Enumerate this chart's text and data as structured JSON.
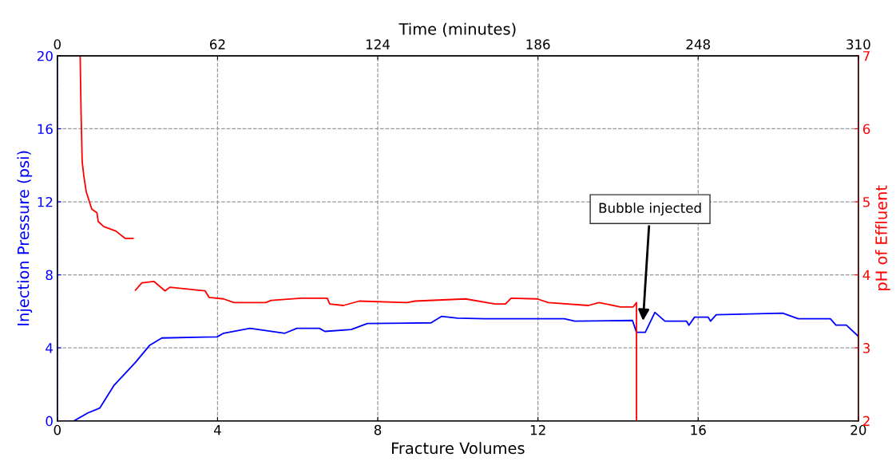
{
  "chart_data": {
    "type": "line",
    "xlabel": "Fracture Volumes",
    "ylabel": "Injection Pressure (psi)",
    "y2label": "pH of Effluent",
    "x2label": "Time (minutes)",
    "xlim": [
      0,
      20
    ],
    "xticks": [
      0,
      4,
      8,
      12,
      16,
      20
    ],
    "ylim": [
      0,
      20
    ],
    "yticks": [
      0,
      4,
      8,
      12,
      16,
      20
    ],
    "y2lim": [
      2,
      7
    ],
    "y2ticks": [
      2,
      3,
      4,
      5,
      6,
      7
    ],
    "x2lim": [
      0,
      310
    ],
    "x2ticks": [
      0,
      62,
      124,
      186,
      248,
      310
    ],
    "grid": true,
    "line_style": "solid",
    "marker": "none",
    "series": [
      {
        "color": "#0000ff",
        "x": [
          0.42,
          0.76,
          1.06,
          1.42,
          1.95,
          2.31,
          2.61,
          3.99,
          4.15,
          4.81,
          5.68,
          5.98,
          6.54,
          6.68,
          7.34,
          7.74,
          9.33,
          9.59,
          9.99,
          10.67,
          12.66,
          12.92,
          14.36,
          14.46,
          14.68,
          14.92,
          15.17,
          15.71,
          15.77,
          15.91,
          16.25,
          16.31,
          16.45,
          18.11,
          18.5,
          19.3,
          19.44,
          19.7,
          20
        ],
        "values": [
          0,
          0.43,
          0.7,
          1.96,
          3.2,
          4.15,
          4.54,
          4.6,
          4.8,
          5.07,
          4.8,
          5.07,
          5.07,
          4.9,
          5.0,
          5.33,
          5.37,
          5.72,
          5.63,
          5.59,
          5.59,
          5.46,
          5.5,
          4.85,
          4.85,
          5.94,
          5.46,
          5.46,
          5.24,
          5.68,
          5.68,
          5.46,
          5.81,
          5.9,
          5.59,
          5.59,
          5.24,
          5.24,
          4.63
        ]
      },
      {
        "color": "#ff0000",
        "axis": "y2",
        "x": [
          0.57,
          0.59,
          0.62,
          0.66,
          0.72,
          0.86,
          0.99,
          1.02,
          1.16,
          1.46,
          1.69,
          1.89,
          1.92,
          1.95,
          2.11,
          2.41,
          2.69,
          2.81,
          3.69,
          3.79,
          4.15,
          4.41,
          5.2,
          5.34,
          6.08,
          6.74,
          6.8,
          7.14,
          7.54,
          8.73,
          8.93,
          10.19,
          10.93,
          11.19,
          11.33,
          11.98,
          12.26,
          13.26,
          13.52,
          14.06,
          14.38,
          14.46,
          14.46
        ],
        "values": [
          7.0,
          6.29,
          5.55,
          5.36,
          5.14,
          4.9,
          4.85,
          4.73,
          4.66,
          4.6,
          4.5,
          4.5,
          null,
          3.79,
          3.89,
          3.91,
          3.78,
          3.83,
          3.78,
          3.69,
          3.67,
          3.62,
          3.62,
          3.65,
          3.68,
          3.68,
          3.6,
          3.58,
          3.64,
          3.62,
          3.64,
          3.67,
          3.6,
          3.6,
          3.68,
          3.67,
          3.62,
          3.58,
          3.62,
          3.56,
          3.56,
          3.62,
          2.0
        ]
      }
    ],
    "annotations": [
      "Bubble injected"
    ]
  }
}
